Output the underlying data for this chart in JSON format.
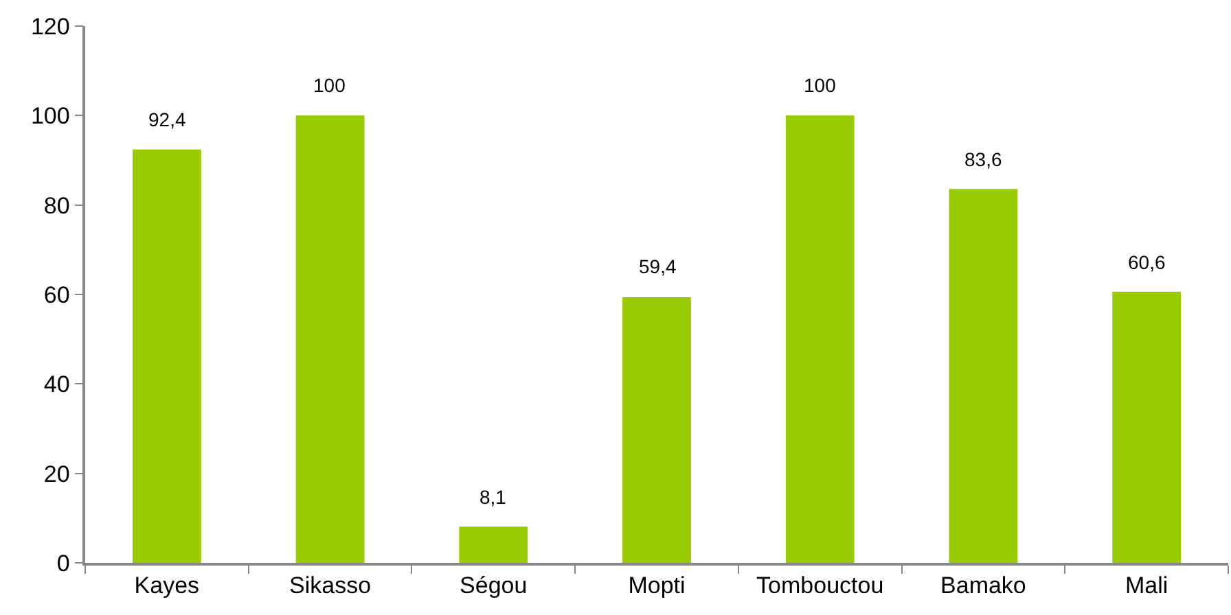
{
  "chart_data": {
    "type": "bar",
    "categories": [
      "Kayes",
      "Sikasso",
      "Ségou",
      "Mopti",
      "Tombouctou",
      "Bamako",
      "Mali"
    ],
    "values": [
      92.4,
      100,
      8.1,
      59.4,
      100,
      83.6,
      60.6
    ],
    "value_labels": [
      "92,4",
      "100",
      "8,1",
      "59,4",
      "100",
      "83,6",
      "60,6"
    ],
    "color": "#99cc00",
    "ylim": [
      0,
      120
    ],
    "yticks": [
      0,
      20,
      40,
      60,
      80,
      100,
      120
    ]
  }
}
